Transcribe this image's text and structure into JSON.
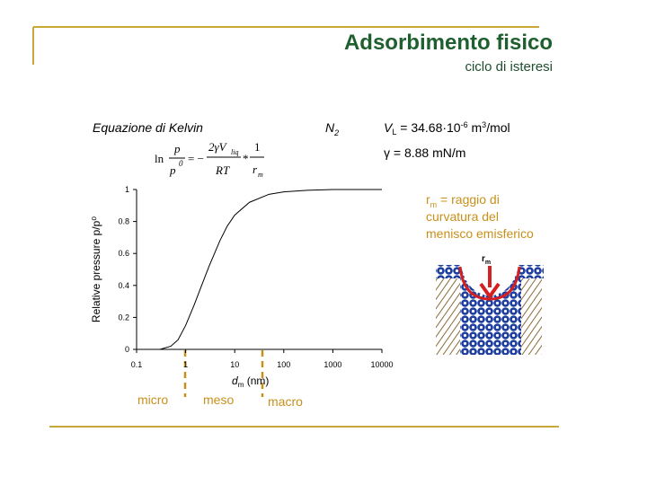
{
  "header": {
    "title": "Adsorbimento fisico",
    "subtitle": "ciclo di isteresi"
  },
  "kelvin": {
    "label": "Equazione di Kelvin",
    "equation": {
      "ln": "ln",
      "p_num": "p",
      "p_den": "p",
      "p_sup": "0",
      "equals": "= −",
      "num2": "2γV",
      "num2_sub": "liq",
      "den2": "RT",
      "times": "*",
      "num3": "1",
      "den3": "r",
      "den3_sub": "m"
    }
  },
  "gas": {
    "symbol": "N",
    "sub": "2"
  },
  "constants": {
    "vl": {
      "v": "V",
      "v_sub": "L",
      "text": " = 34.68·10",
      "exp": "-6",
      "unit": " m",
      "unit_exp": "3",
      "unit_rest": "/mol"
    },
    "gamma": "γ = 8.88 mN/m"
  },
  "note": {
    "symbol": "r",
    "sub": "m",
    "lines": [
      " = raggio di",
      "curvatura del",
      "menisco emisferico"
    ]
  },
  "diagram": {
    "symbol": "r",
    "sub": "m"
  },
  "regions": [
    "micro",
    "meso",
    "macro"
  ],
  "chart_data": {
    "type": "line",
    "y_label": "Relative pressure p/p⁰",
    "x_label": {
      "main": "d",
      "sub": "m",
      "unit": " (nm)"
    },
    "x": [
      0.3,
      0.5,
      0.7,
      1,
      1.5,
      2,
      3,
      5,
      7,
      10,
      20,
      50,
      100,
      300,
      1000,
      10000
    ],
    "values": [
      0,
      0.02,
      0.06,
      0.15,
      0.28,
      0.38,
      0.52,
      0.68,
      0.77,
      0.84,
      0.92,
      0.97,
      0.985,
      0.995,
      1,
      1
    ],
    "color": "#000000",
    "xlim": [
      0.1,
      10000
    ],
    "xticks": [
      0.1,
      1,
      10,
      100,
      1000,
      10000
    ],
    "xscale": "log",
    "ylim": [
      0,
      1
    ],
    "yticks": [
      0,
      0.2,
      0.4,
      0.6,
      0.8,
      1
    ]
  }
}
